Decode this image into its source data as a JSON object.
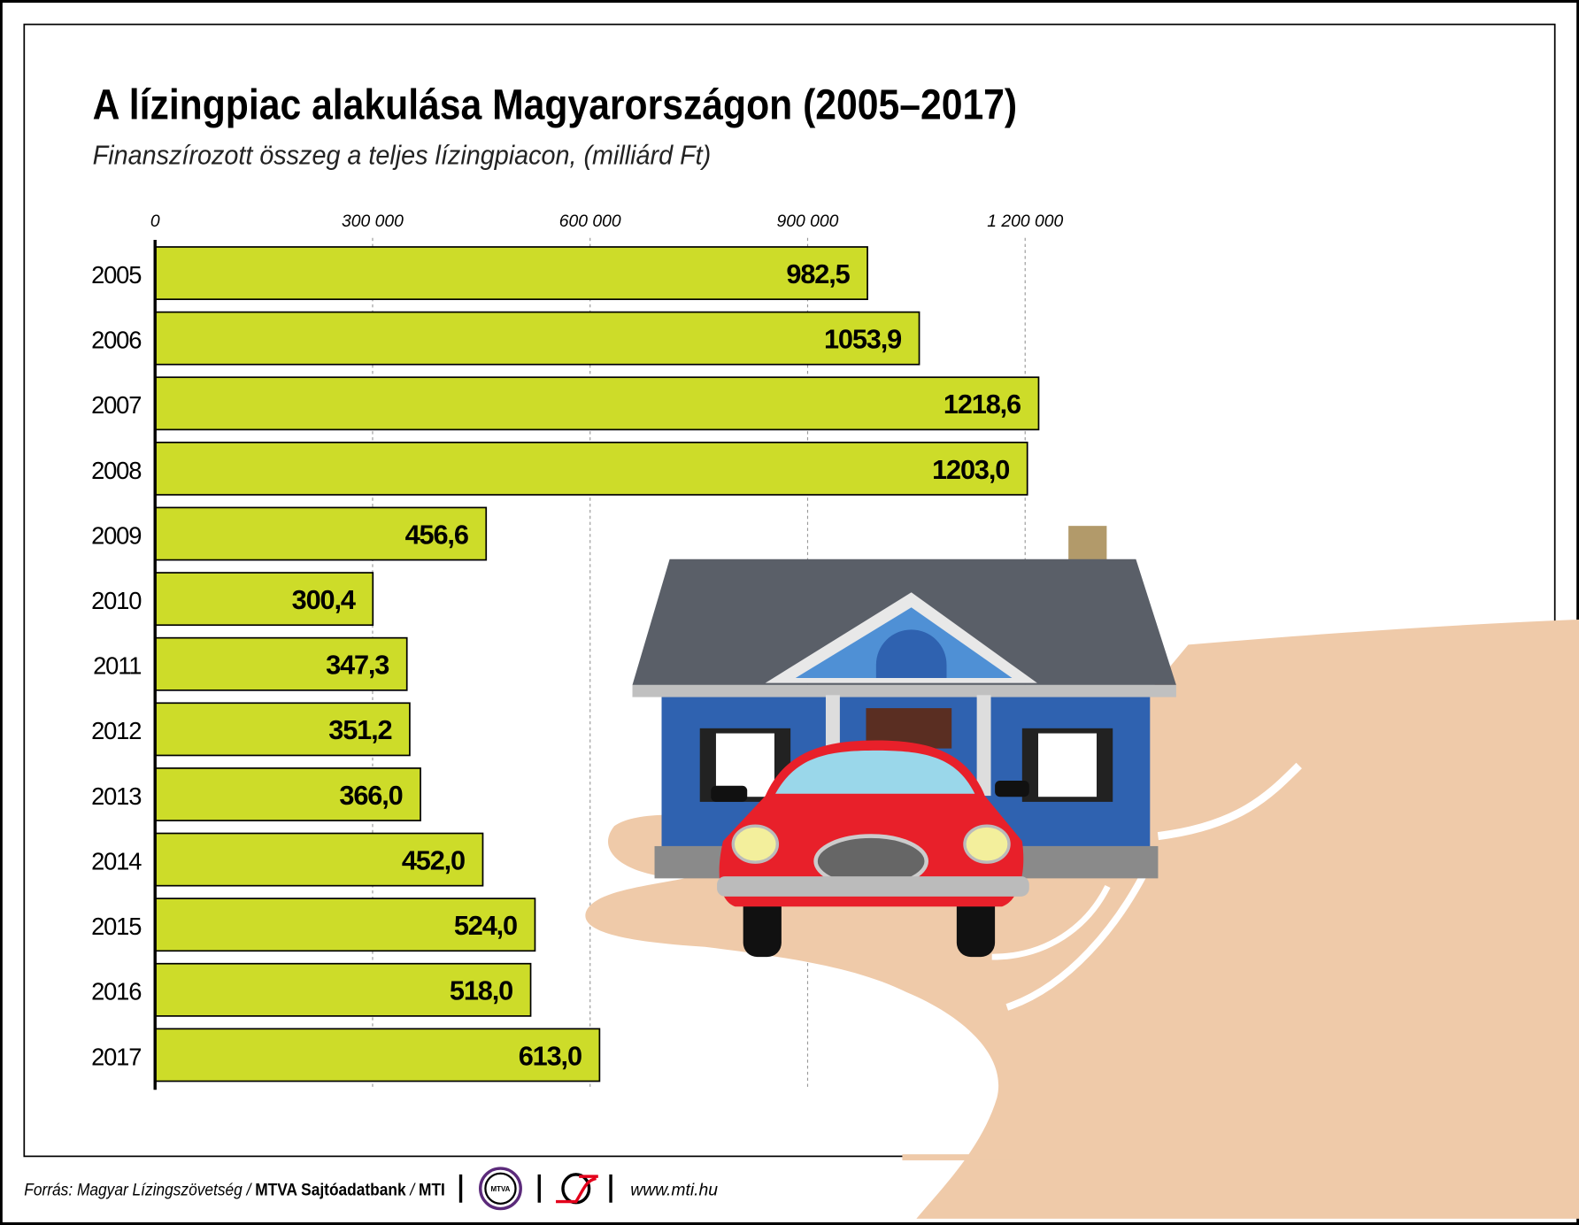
{
  "chart_data": {
    "type": "bar",
    "orientation": "horizontal",
    "title": "A lízingpiac alakulása Magyarországon (2005–2017)",
    "subtitle": "Finanszírozott összeg a teljes lízingpiacon, (milliárd Ft)",
    "categories": [
      "2005",
      "2006",
      "2007",
      "2008",
      "2009",
      "2010",
      "2011",
      "2012",
      "2013",
      "2014",
      "2015",
      "2016",
      "2017"
    ],
    "values": [
      982.5,
      1053.9,
      1218.6,
      1203.0,
      456.6,
      300.4,
      347.3,
      351.2,
      366.0,
      452.0,
      524.0,
      518.0,
      613.0
    ],
    "value_labels": [
      "982,5",
      "1053,9",
      "1218,6",
      "1203,0",
      "456,6",
      "300,4",
      "347,3",
      "351,2",
      "366,0",
      "452,0",
      "524,0",
      "518,0",
      "613,0"
    ],
    "xaxis_ticks": [
      0,
      300000,
      600000,
      900000,
      1200000
    ],
    "xaxis_tick_labels": [
      "0",
      "300 000",
      "600 000",
      "900 000",
      "1 200 000"
    ],
    "xlim": [
      0,
      1200000
    ],
    "axis_position": "top",
    "grid": "vertical dashed",
    "bar_color": "#cddc29"
  },
  "footer": {
    "source_prefix": "Forrás: Magyar Lízingszövetség / ",
    "source_bold": "MTVA Sajtóadatbank",
    "source_sep": " / ",
    "source_mti": "MTI",
    "logo_mtva": "MTVA",
    "website": "www.mti.hu"
  }
}
